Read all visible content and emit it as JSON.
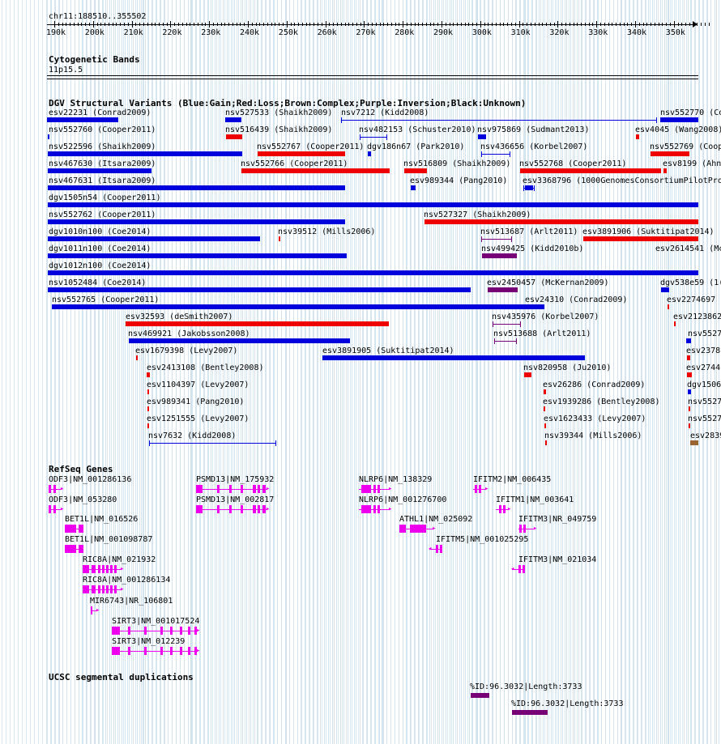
{
  "position": "chr11:188510..355502",
  "ruler": {
    "ticks": [
      "190k",
      "200k",
      "210k",
      "220k",
      "230k",
      "240k",
      "250k",
      "260k",
      "270k",
      "280k",
      "290k",
      "300k",
      "310k",
      "320k",
      "330k",
      "340k",
      "350k"
    ]
  },
  "tracks": {
    "cytobands": {
      "title": "Cytogenetic Bands",
      "band": "11p15.5"
    },
    "dgv": {
      "title": "DGV Structural Variants (Blue:Gain;Red:Loss;Brown:Complex;Purple:Inversion;Black:Unknown)",
      "features": [
        {
          "label": "esv22231 (Conrad2009)"
        },
        {
          "label": "nsv527533 (Shaikh2009)"
        },
        {
          "label": "nsv7212 (Kidd2008)"
        },
        {
          "label": "nsv552770 (Co"
        },
        {
          "label": "nsv552760 (Cooper2011)"
        },
        {
          "label": "nsv516439 (Shaikh2009)"
        },
        {
          "label": "nsv482153 (Schuster2010)"
        },
        {
          "label": "nsv975869 (Sudmant2013)"
        },
        {
          "label": "esv4045 (Wang2008)"
        },
        {
          "label": "nsv522596 (Shaikh2009)"
        },
        {
          "label": "nsv552767 (Cooper2011)"
        },
        {
          "label": "dgv186n67 (Park2010)"
        },
        {
          "label": "nsv436656 (Korbel2007)"
        },
        {
          "label": "nsv552769 (Coop"
        },
        {
          "label": "nsv467630 (Itsara2009)"
        },
        {
          "label": "nsv552766 (Cooper2011)"
        },
        {
          "label": "nsv516809 (Shaikh2009)"
        },
        {
          "label": "nsv552768 (Cooper2011)"
        },
        {
          "label": "esv8199 (Ahn"
        },
        {
          "label": "nsv467631 (Itsara2009)"
        },
        {
          "label": "esv989344 (Pang2010)"
        },
        {
          "label": "esv3368796 (1000GenomesConsortiumPilotPro"
        },
        {
          "label": "dgv1505n54 (Cooper2011)"
        },
        {
          "label": "nsv552762 (Cooper2011)"
        },
        {
          "label": "nsv527327 (Shaikh2009)"
        },
        {
          "label": "dgv1010n100 (Coe2014)"
        },
        {
          "label": "nsv39512 (Mills2006)"
        },
        {
          "label": "nsv513687 (Arlt2011)"
        },
        {
          "label": "esv3891906 (Suktitipat2014)"
        },
        {
          "label": "dgv1011n100 (Coe2014)"
        },
        {
          "label": "nsv499425 (Kidd2010b)"
        },
        {
          "label": "esv2614541 (Mc"
        },
        {
          "label": "dgv1012n100 (Coe2014)"
        },
        {
          "label": "nsv1052484 (Coe2014)"
        },
        {
          "label": "esv2450457 (McKernan2009)"
        },
        {
          "label": "dgv538e59 (1("
        },
        {
          "label": "nsv552765 (Cooper2011)"
        },
        {
          "label": "esv24310 (Conrad2009)"
        },
        {
          "label": "esv2274697"
        },
        {
          "label": "esv32593 (deSmith2007)"
        },
        {
          "label": "nsv435976 (Korbel2007)"
        },
        {
          "label": "esv2123862"
        },
        {
          "label": "nsv469921 (Jakobsson2008)"
        },
        {
          "label": "nsv513688 (Arlt2011)"
        },
        {
          "label": "nsv5527"
        },
        {
          "label": "esv1679398 (Levy2007)"
        },
        {
          "label": "esv3891905 (Suktitipat2014)"
        },
        {
          "label": "esv2378"
        },
        {
          "label": "esv2413108 (Bentley2008)"
        },
        {
          "label": "nsv820958 (Ju2010)"
        },
        {
          "label": "esv2744"
        },
        {
          "label": "esv1104397 (Levy2007)"
        },
        {
          "label": "esv26286 (Conrad2009)"
        },
        {
          "label": "dgv1506"
        },
        {
          "label": "esv989341 (Pang2010)"
        },
        {
          "label": "esv1939286 (Bentley2008)"
        },
        {
          "label": "nsv5527"
        },
        {
          "label": "esv1251555 (Levy2007)"
        },
        {
          "label": "esv1623433 (Levy2007)"
        },
        {
          "label": "nsv5527"
        },
        {
          "label": "nsv7632 (Kidd2008)"
        },
        {
          "label": "nsv39344 (Mills2006)"
        },
        {
          "label": "esv2839"
        }
      ]
    },
    "refseq": {
      "title": "RefSeq Genes",
      "genes": [
        {
          "label": "ODF3|NM_001286136"
        },
        {
          "label": "PSMD13|NM_175932"
        },
        {
          "label": "NLRP6|NM_138329"
        },
        {
          "label": "IFITM2|NM_006435"
        },
        {
          "label": "ODF3|NM_053280"
        },
        {
          "label": "PSMD13|NM_002817"
        },
        {
          "label": "NLRP6|NM_001276700"
        },
        {
          "label": "IFITM1|NM_003641"
        },
        {
          "label": "BET1L|NM_016526"
        },
        {
          "label": "ATHL1|NM_025092"
        },
        {
          "label": "IFITM3|NR_049759"
        },
        {
          "label": "BET1L|NM_001098787"
        },
        {
          "label": "IFITM5|NM_001025295"
        },
        {
          "label": "RIC8A|NM_021932"
        },
        {
          "label": "IFITM3|NM_021034"
        },
        {
          "label": "RIC8A|NM_001286134"
        },
        {
          "label": "MIR6743|NR_106801"
        },
        {
          "label": "SIRT3|NM_001017524"
        },
        {
          "label": "SIRT3|NM_012239"
        }
      ]
    },
    "segdups": {
      "title": "UCSC segmental duplications",
      "features": [
        {
          "label": "%ID:96.3032|Length:3733"
        },
        {
          "label": "%ID:96.3032|Length:3733"
        }
      ]
    }
  },
  "colors": {
    "gain": "#0000dd",
    "loss": "#ee0000",
    "complex": "#996633",
    "inversion": "#770077",
    "gene": "#ee00ee",
    "segdup": "#770077",
    "grid": "#d4e4ee"
  },
  "arrows": {
    "right": "▸",
    "left": "◂"
  }
}
